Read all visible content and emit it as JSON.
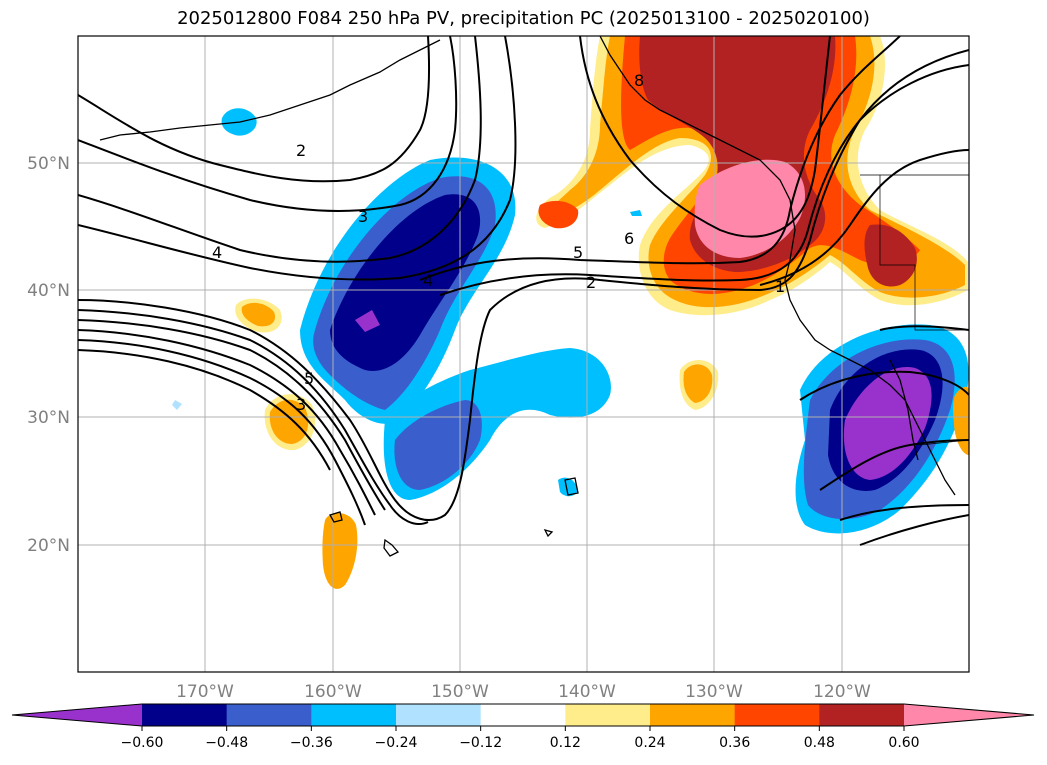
{
  "title": "2025012800 F084 250 hPa PV, precipitation PC (2025013100 - 2025020100)",
  "map": {
    "lat_labels": [
      "50°N",
      "40°N",
      "30°N",
      "20°N"
    ],
    "lon_labels": [
      "170°W",
      "160°W",
      "150°W",
      "140°W",
      "130°W",
      "120°W"
    ],
    "contour_labels": [
      "2",
      "3",
      "4",
      "5",
      "6",
      "8",
      "2",
      "1",
      "5",
      "3",
      "4"
    ],
    "colors": {
      "gridline": "#b0b0b0",
      "contour": "#000000",
      "coast": "#000000"
    }
  },
  "colorbar": {
    "tick_labels": [
      "−0.60",
      "−0.48",
      "−0.36",
      "−0.24",
      "−0.12",
      "0.12",
      "0.24",
      "0.36",
      "0.48",
      "0.60"
    ],
    "colors": [
      "#9932cc",
      "#00008b",
      "#3a5fcd",
      "#00bfff",
      "#b0e2ff",
      "#ffffff",
      "#ffec8b",
      "#ffa500",
      "#ff4500",
      "#b22222",
      "#ff88aa"
    ]
  }
}
